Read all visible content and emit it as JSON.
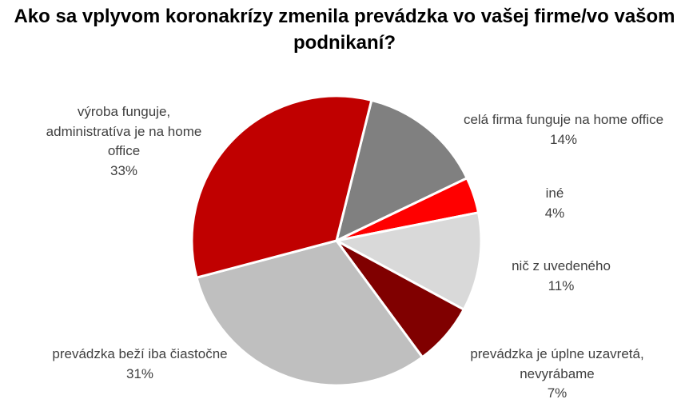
{
  "chart_data": {
    "type": "pie",
    "title_lines": [
      "Ako sa vplyvom koronakrízy zmenila prevádzka vo vašej firme/vo vašom",
      "podnikaní?"
    ],
    "slices": [
      {
        "label_lines": [
          "celá firma funguje na home office"
        ],
        "value": 14,
        "value_label": "14%",
        "color": "#808080"
      },
      {
        "label_lines": [
          "iné"
        ],
        "value": 4,
        "value_label": "4%",
        "color": "#FF0000"
      },
      {
        "label_lines": [
          "nič z uvedeného"
        ],
        "value": 11,
        "value_label": "11%",
        "color": "#D9D9D9"
      },
      {
        "label_lines": [
          "prevádzka je úplne uzavretá,",
          "nevyrábame"
        ],
        "value": 7,
        "value_label": "7%",
        "color": "#800000"
      },
      {
        "label_lines": [
          "prevádzka beží iba čiastočne"
        ],
        "value": 31,
        "value_label": "31%",
        "color": "#BFBFBF"
      },
      {
        "label_lines": [
          "výroba funguje,",
          "administratíva je na home",
          "office"
        ],
        "value": 33,
        "value_label": "33%",
        "color": "#C00000"
      }
    ],
    "start_angle_deg": 14,
    "direction": "clockwise",
    "slice_border_color": "#FFFFFF",
    "legend": "none",
    "label_color": "#404040"
  }
}
